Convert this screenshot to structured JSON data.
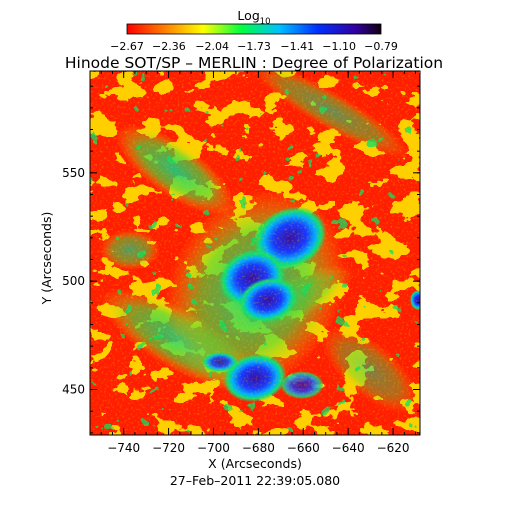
{
  "title": "Hinode SOT/SP – MERLIN : Degree of Polarization",
  "colorbar": {
    "label_base": "Log",
    "label_sub": "10",
    "tick_labels": [
      "−2.67",
      "−2.36",
      "−2.04",
      "−1.73",
      "−1.41",
      "−1.10",
      "−0.79"
    ],
    "values": [
      -2.67,
      -2.36,
      -2.04,
      -1.73,
      -1.41,
      -1.1,
      -0.79
    ],
    "range": [
      -2.67,
      -0.79
    ]
  },
  "axes": {
    "xlabel": "X (Arcseconds)",
    "ylabel": "Y (Arcseconds)",
    "x_tick_labels": [
      "−740",
      "−720",
      "−700",
      "−680",
      "−660",
      "−640",
      "−620"
    ],
    "x_ticks": [
      -740,
      -720,
      -700,
      -680,
      -660,
      -640,
      -620
    ],
    "y_tick_labels": [
      "450",
      "500",
      "550"
    ],
    "y_ticks": [
      450,
      500,
      550
    ],
    "xlim": [
      -755,
      -608
    ],
    "ylim": [
      429,
      597
    ]
  },
  "timestamp": "27–Feb–2011 22:39:05.080",
  "colors": {
    "low": "#ff1a00",
    "mid_low": "#ffe000",
    "mid": "#00e070",
    "mid_high": "#0050ff",
    "high": "#200040"
  }
}
